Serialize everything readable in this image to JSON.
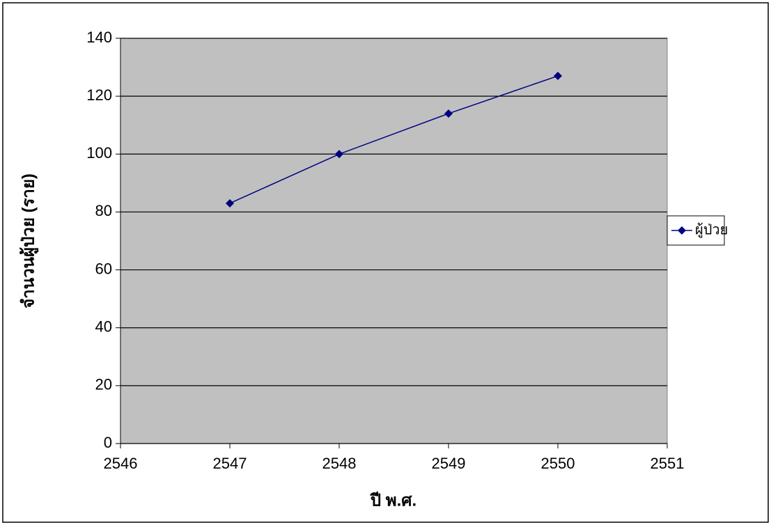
{
  "chart_data": {
    "type": "line",
    "x": [
      2547,
      2548,
      2549,
      2550
    ],
    "series": [
      {
        "name": "ผู้ป่วย",
        "color": "#000080",
        "values": [
          83,
          100,
          114,
          127
        ]
      }
    ],
    "xlim": [
      2546,
      2551
    ],
    "xticks": [
      2546,
      2547,
      2548,
      2549,
      2550,
      2551
    ],
    "ylim": [
      0,
      140
    ],
    "yticks": [
      0,
      20,
      40,
      60,
      80,
      100,
      120,
      140
    ],
    "x_label": "ปี พ.ศ.",
    "y_label": "จำนวนผู้ป่วย (ราย)",
    "grid": true,
    "legend": "right",
    "plot_background": "#c0c0c0"
  }
}
